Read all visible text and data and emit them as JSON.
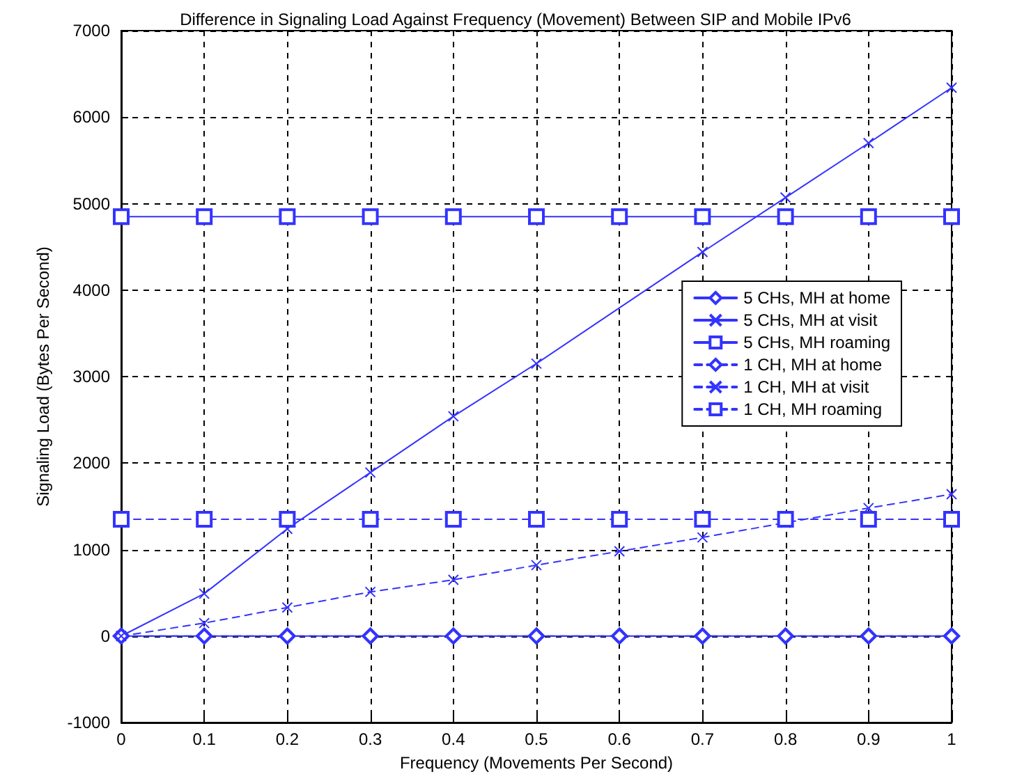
{
  "chart_data": {
    "type": "line",
    "title": "Difference in Signaling Load Against Frequency (Movement) Between SIP and Mobile IPv6",
    "xlabel": "Frequency (Movements Per Second)",
    "ylabel": "Signaling Load (Bytes Per Second)",
    "x": [
      0,
      0.1,
      0.2,
      0.3,
      0.4,
      0.5,
      0.6,
      0.7,
      0.8,
      0.9,
      1
    ],
    "series": [
      {
        "name": "5 CHs, MH at home",
        "color": "#3333ff",
        "marker": "diamond",
        "line_style": "solid",
        "values": [
          0,
          0,
          0,
          0,
          0,
          0,
          0,
          0,
          0,
          0,
          0
        ]
      },
      {
        "name": "5 CHs, MH at visit",
        "color": "#3333ff",
        "marker": "cross",
        "line_style": "solid",
        "values": [
          0,
          490,
          1240,
          1890,
          2540,
          3150,
          null,
          4440,
          5070,
          5700,
          6340
        ]
      },
      {
        "name": "5 CHs, MH roaming",
        "color": "#3333ff",
        "marker": "square",
        "line_style": "solid",
        "values": [
          4850,
          4850,
          4850,
          4850,
          4850,
          4850,
          4850,
          4850,
          4850,
          4850,
          4850
        ]
      },
      {
        "name": "1 CH, MH at home",
        "color": "#3333ff",
        "marker": "diamond",
        "line_style": "dashed",
        "values": [
          0,
          0,
          0,
          0,
          0,
          0,
          0,
          0,
          0,
          0,
          0
        ]
      },
      {
        "name": "1 CH, MH at visit",
        "color": "#3333ff",
        "marker": "cross",
        "line_style": "dashed",
        "values": [
          0,
          150,
          330,
          510,
          650,
          820,
          980,
          1140,
          1310,
          1480,
          1640
        ]
      },
      {
        "name": "1 CH, MH roaming",
        "color": "#3333ff",
        "marker": "square",
        "line_style": "dashed",
        "values": [
          1350,
          1350,
          1350,
          1350,
          1350,
          1350,
          1350,
          1350,
          1350,
          1350,
          1350
        ]
      }
    ],
    "xlim": [
      0,
      1
    ],
    "xticks": [
      0,
      0.1,
      0.2,
      0.3,
      0.4,
      0.5,
      0.6,
      0.7,
      0.8,
      0.9,
      1
    ],
    "ylim": [
      -1000,
      7000
    ],
    "yticks": [
      -1000,
      0,
      1000,
      2000,
      3000,
      4000,
      5000,
      6000,
      7000
    ],
    "grid": true,
    "legend": "right"
  }
}
